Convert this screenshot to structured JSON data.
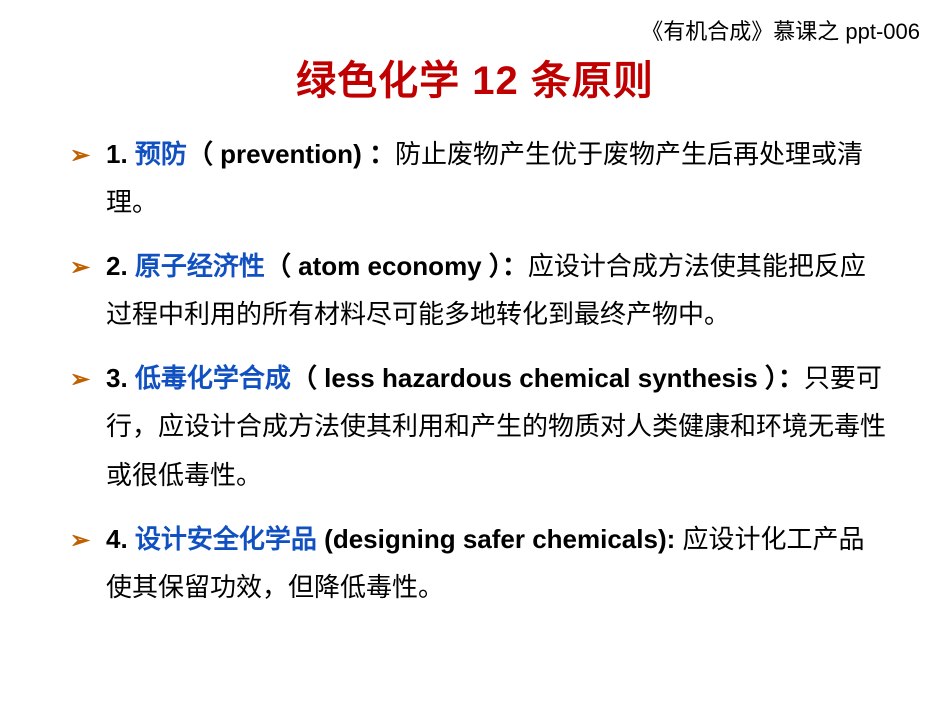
{
  "header_note": "《有机合成》慕课之 ppt-006",
  "title": "绿色化学 12 条原则",
  "bullet_glyph": "➢",
  "colors": {
    "title": "#c00000",
    "term": "#1050c0",
    "bullet": "#c06000",
    "text": "#000000",
    "background": "#ffffff"
  },
  "items": [
    {
      "num": "1.",
      "term": "预防",
      "paren": "（ prevention) ：",
      "body": "防止废物产生优于废物产生后再处理或清理。"
    },
    {
      "num": "2.",
      "term": "原子经济性",
      "paren": "（ atom economy ）：",
      "body": "应设计合成方法使其能把反应过程中利用的所有材料尽可能多地转化到最终产物中。"
    },
    {
      "num": "3.",
      "term": "低毒化学合成",
      "paren": "（ less hazardous chemical synthesis ）：",
      "body": "只要可行，应设计合成方法使其利用和产生的物质对人类健康和环境无毒性或很低毒性。"
    },
    {
      "num": "4. ",
      "term": "设计安全化学品",
      "paren": " (designing safer chemicals): ",
      "body": "应设计化工产品使其保留功效，但降低毒性。"
    }
  ]
}
